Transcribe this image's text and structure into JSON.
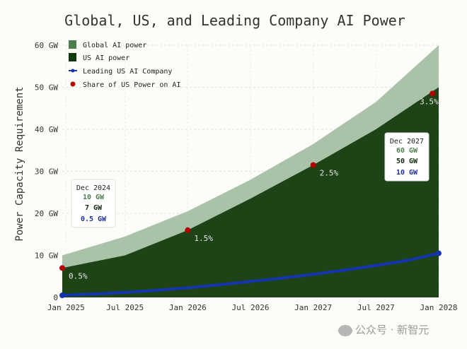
{
  "chart_data": {
    "type": "area",
    "title": "Global, US, and Leading Company AI Power",
    "xlabel": "",
    "ylabel": "Power Capacity Requirement",
    "x_range": [
      "Dec 2024",
      "Jan 2028"
    ],
    "ylim": [
      0,
      60
    ],
    "y_ticks": [
      {
        "value": 0,
        "label": "0"
      },
      {
        "value": 10,
        "label": "10 GW"
      },
      {
        "value": 20,
        "label": "20 GW"
      },
      {
        "value": 30,
        "label": "30 GW"
      },
      {
        "value": 40,
        "label": "40 GW"
      },
      {
        "value": 50,
        "label": "50 GW"
      },
      {
        "value": 60,
        "label": "60 GW"
      }
    ],
    "x_ticks": [
      {
        "t": 0.03,
        "label": "Jan 2025"
      },
      {
        "t": 0.5,
        "label": "Jul 2025"
      },
      {
        "t": 1.0,
        "label": "Jan 2026"
      },
      {
        "t": 1.5,
        "label": "Jul 2026"
      },
      {
        "t": 2.0,
        "label": "Jan 2027"
      },
      {
        "t": 2.5,
        "label": "Jul 2027"
      },
      {
        "t": 3.0,
        "label": "Jan 2028"
      }
    ],
    "grid": true,
    "legend_position": "top-left",
    "series": [
      {
        "name": "Global AI power",
        "kind": "area",
        "color": "#aac3a8",
        "legend_color": "#4e7f4e",
        "points": [
          [
            0,
            10
          ],
          [
            0.5,
            14.5
          ],
          [
            1,
            20.5
          ],
          [
            1.5,
            28
          ],
          [
            2,
            36.5
          ],
          [
            2.5,
            46.5
          ],
          [
            3,
            60
          ]
        ]
      },
      {
        "name": "US AI power",
        "kind": "area",
        "color": "#1d4317",
        "legend_color": "#113a0c",
        "points": [
          [
            0,
            7
          ],
          [
            0.5,
            10
          ],
          [
            1,
            16
          ],
          [
            1.5,
            23.5
          ],
          [
            2,
            31.5
          ],
          [
            2.5,
            40
          ],
          [
            3,
            50
          ]
        ]
      },
      {
        "name": "Leading US AI Company",
        "kind": "line",
        "color": "#1535b0",
        "points": [
          [
            0,
            0.5
          ],
          [
            0.25,
            0.8
          ],
          [
            0.5,
            1.2
          ],
          [
            0.75,
            1.7
          ],
          [
            1,
            2.3
          ],
          [
            1.25,
            3.0
          ],
          [
            1.5,
            3.8
          ],
          [
            1.75,
            4.6
          ],
          [
            2,
            5.5
          ],
          [
            2.25,
            6.5
          ],
          [
            2.5,
            7.6
          ],
          [
            2.75,
            8.8
          ],
          [
            3,
            10.5
          ]
        ]
      },
      {
        "name": "Share of US Power on AI",
        "kind": "scatter",
        "color": "#b30000",
        "points": [
          {
            "t": 0,
            "y": 7,
            "label": "0.5%"
          },
          {
            "t": 1,
            "y": 16,
            "label": "1.5%"
          },
          {
            "t": 2,
            "y": 31.5,
            "label": "2.5%"
          },
          {
            "t": 2.95,
            "y": 48.5,
            "label": "3.5%"
          }
        ]
      }
    ],
    "annotations": [
      {
        "date": "Dec 2024",
        "global": "10 GW",
        "us": "7 GW",
        "company": "0.5 GW"
      },
      {
        "date": "Dec 2027",
        "global": "60 GW",
        "us": "50 GW",
        "company": "10 GW"
      }
    ]
  },
  "colors": {
    "global_text": "#4e7f4e",
    "us_text": "#0d2a0a",
    "company_text": "#1a2f9a"
  },
  "watermark": "公众号 · 新智元"
}
